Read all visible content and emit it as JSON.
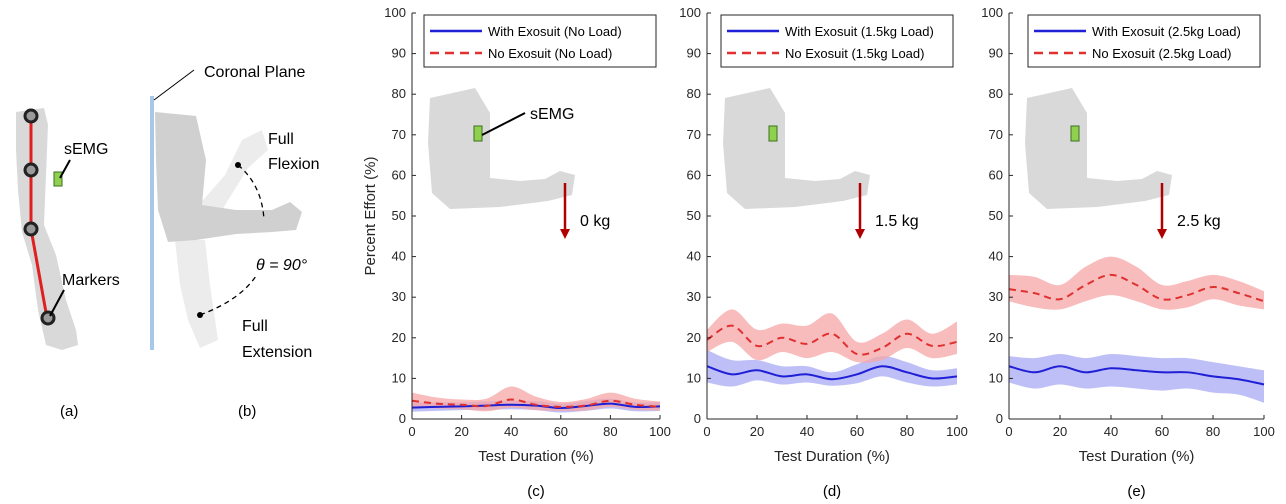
{
  "panel_a": {
    "semg_label": "sEMG",
    "markers_label": "Markers",
    "caption": "(a)"
  },
  "panel_b": {
    "coronal_label": "Coronal Plane",
    "full_flexion_line1": "Full",
    "full_flexion_line2": "Flexion",
    "full_extension_line1": "Full",
    "full_extension_line2": "Extension",
    "angle_label": "θ = 90°",
    "caption": "(b)"
  },
  "colors": {
    "with_exosuit": "#1f1fd6",
    "with_band": "#a9a9f5",
    "no_exosuit": "#e03030",
    "no_band": "#f5a6a6",
    "plane": "#a8c8ea",
    "arm": "#d9d9d9",
    "semg": "#8fd14f",
    "marker_line": "#e02020",
    "weight_arrow": "#b00000"
  },
  "chart_data": [
    {
      "type": "line",
      "caption": "(c)",
      "xlabel": "Test Duration (%)",
      "ylabel": "Percent Effort (%)",
      "xlim": [
        0,
        100
      ],
      "ylim": [
        0,
        100
      ],
      "xticks": [
        0,
        20,
        40,
        60,
        80,
        100
      ],
      "yticks": [
        0,
        10,
        20,
        30,
        40,
        50,
        60,
        70,
        80,
        90,
        100
      ],
      "legend_position": "top-right",
      "annotation_semg": "sEMG",
      "annotation_weight": "0 kg",
      "x": [
        0,
        10,
        20,
        30,
        40,
        50,
        60,
        70,
        80,
        90,
        100
      ],
      "series": [
        {
          "name": "With Exosuit (No Load)",
          "style": "solid",
          "values": [
            2.8,
            3.0,
            3.1,
            3.3,
            3.5,
            3.3,
            2.7,
            3.2,
            3.8,
            3.0,
            3.1
          ],
          "lower": [
            1.8,
            2.0,
            2.2,
            2.2,
            2.4,
            2.2,
            1.6,
            2.0,
            2.6,
            1.9,
            2.0
          ],
          "upper": [
            4.0,
            4.1,
            4.1,
            4.3,
            4.6,
            4.4,
            3.8,
            4.4,
            5.0,
            4.1,
            4.2
          ]
        },
        {
          "name": "No Exosuit (No Load)",
          "style": "dashed",
          "values": [
            4.5,
            3.8,
            3.5,
            3.2,
            4.8,
            3.5,
            3.0,
            3.3,
            4.5,
            3.5,
            3.0
          ],
          "lower": [
            3.0,
            2.6,
            2.4,
            1.9,
            2.8,
            2.2,
            2.0,
            2.1,
            3.0,
            2.3,
            2.0
          ],
          "upper": [
            6.5,
            5.3,
            4.8,
            5.0,
            8.0,
            5.5,
            4.2,
            4.9,
            6.5,
            5.0,
            4.3
          ]
        }
      ]
    },
    {
      "type": "line",
      "caption": "(d)",
      "xlabel": "Test Duration (%)",
      "ylabel": "",
      "xlim": [
        0,
        100
      ],
      "ylim": [
        0,
        100
      ],
      "xticks": [
        0,
        20,
        40,
        60,
        80,
        100
      ],
      "yticks": [
        0,
        10,
        20,
        30,
        40,
        50,
        60,
        70,
        80,
        90,
        100
      ],
      "legend_position": "top-right",
      "annotation_semg": "",
      "annotation_weight": "1.5 kg",
      "x": [
        0,
        10,
        20,
        30,
        40,
        50,
        60,
        70,
        80,
        90,
        100
      ],
      "series": [
        {
          "name": "With Exosuit (1.5kg Load)",
          "style": "solid",
          "values": [
            13.0,
            11.0,
            12.0,
            10.5,
            11.0,
            9.8,
            11.0,
            13.0,
            11.5,
            10.0,
            10.5
          ],
          "lower": [
            9.0,
            8.0,
            9.5,
            8.5,
            9.0,
            8.2,
            8.8,
            10.5,
            9.0,
            8.0,
            8.5
          ],
          "upper": [
            17.0,
            14.5,
            14.5,
            13.0,
            13.0,
            11.5,
            13.5,
            15.5,
            14.0,
            12.0,
            12.5
          ]
        },
        {
          "name": "No Exosuit (1.5kg Load)",
          "style": "dashed",
          "values": [
            19.5,
            23.0,
            18.0,
            20.0,
            18.5,
            21.0,
            16.0,
            17.5,
            21.0,
            18.0,
            19.0
          ],
          "lower": [
            16.5,
            19.0,
            14.5,
            16.5,
            15.0,
            16.5,
            14.0,
            14.5,
            17.5,
            15.0,
            16.0
          ],
          "upper": [
            22.0,
            27.0,
            22.0,
            23.5,
            23.0,
            26.0,
            19.0,
            21.0,
            24.5,
            21.0,
            24.0
          ]
        }
      ]
    },
    {
      "type": "line",
      "caption": "(e)",
      "xlabel": "Test Duration (%)",
      "ylabel": "",
      "xlim": [
        0,
        100
      ],
      "ylim": [
        0,
        100
      ],
      "xticks": [
        0,
        20,
        40,
        60,
        80,
        100
      ],
      "yticks": [
        0,
        10,
        20,
        30,
        40,
        50,
        60,
        70,
        80,
        90,
        100
      ],
      "legend_position": "top-right",
      "annotation_semg": "",
      "annotation_weight": "2.5 kg",
      "x": [
        0,
        10,
        20,
        30,
        40,
        50,
        60,
        70,
        80,
        90,
        100
      ],
      "series": [
        {
          "name": "With Exosuit (2.5kg Load)",
          "style": "solid",
          "values": [
            13.0,
            11.5,
            13.0,
            11.5,
            12.5,
            12.0,
            11.5,
            11.5,
            10.5,
            9.8,
            8.5
          ],
          "lower": [
            9.0,
            7.5,
            8.5,
            7.5,
            8.0,
            7.5,
            7.0,
            7.5,
            6.5,
            6.0,
            4.0
          ],
          "upper": [
            15.5,
            15.0,
            16.0,
            15.0,
            16.0,
            15.5,
            15.0,
            15.0,
            14.0,
            13.0,
            12.0
          ]
        },
        {
          "name": "No Exosuit (2.5kg Load)",
          "style": "dashed",
          "values": [
            32.0,
            31.0,
            29.5,
            33.0,
            35.5,
            33.0,
            29.5,
            30.5,
            32.5,
            31.0,
            29.0
          ],
          "lower": [
            29.0,
            27.5,
            27.0,
            29.0,
            30.5,
            29.0,
            27.0,
            27.5,
            29.5,
            28.0,
            27.0
          ],
          "upper": [
            35.5,
            35.0,
            33.0,
            37.5,
            40.0,
            37.5,
            33.0,
            34.0,
            35.5,
            34.0,
            31.5
          ]
        }
      ]
    }
  ]
}
